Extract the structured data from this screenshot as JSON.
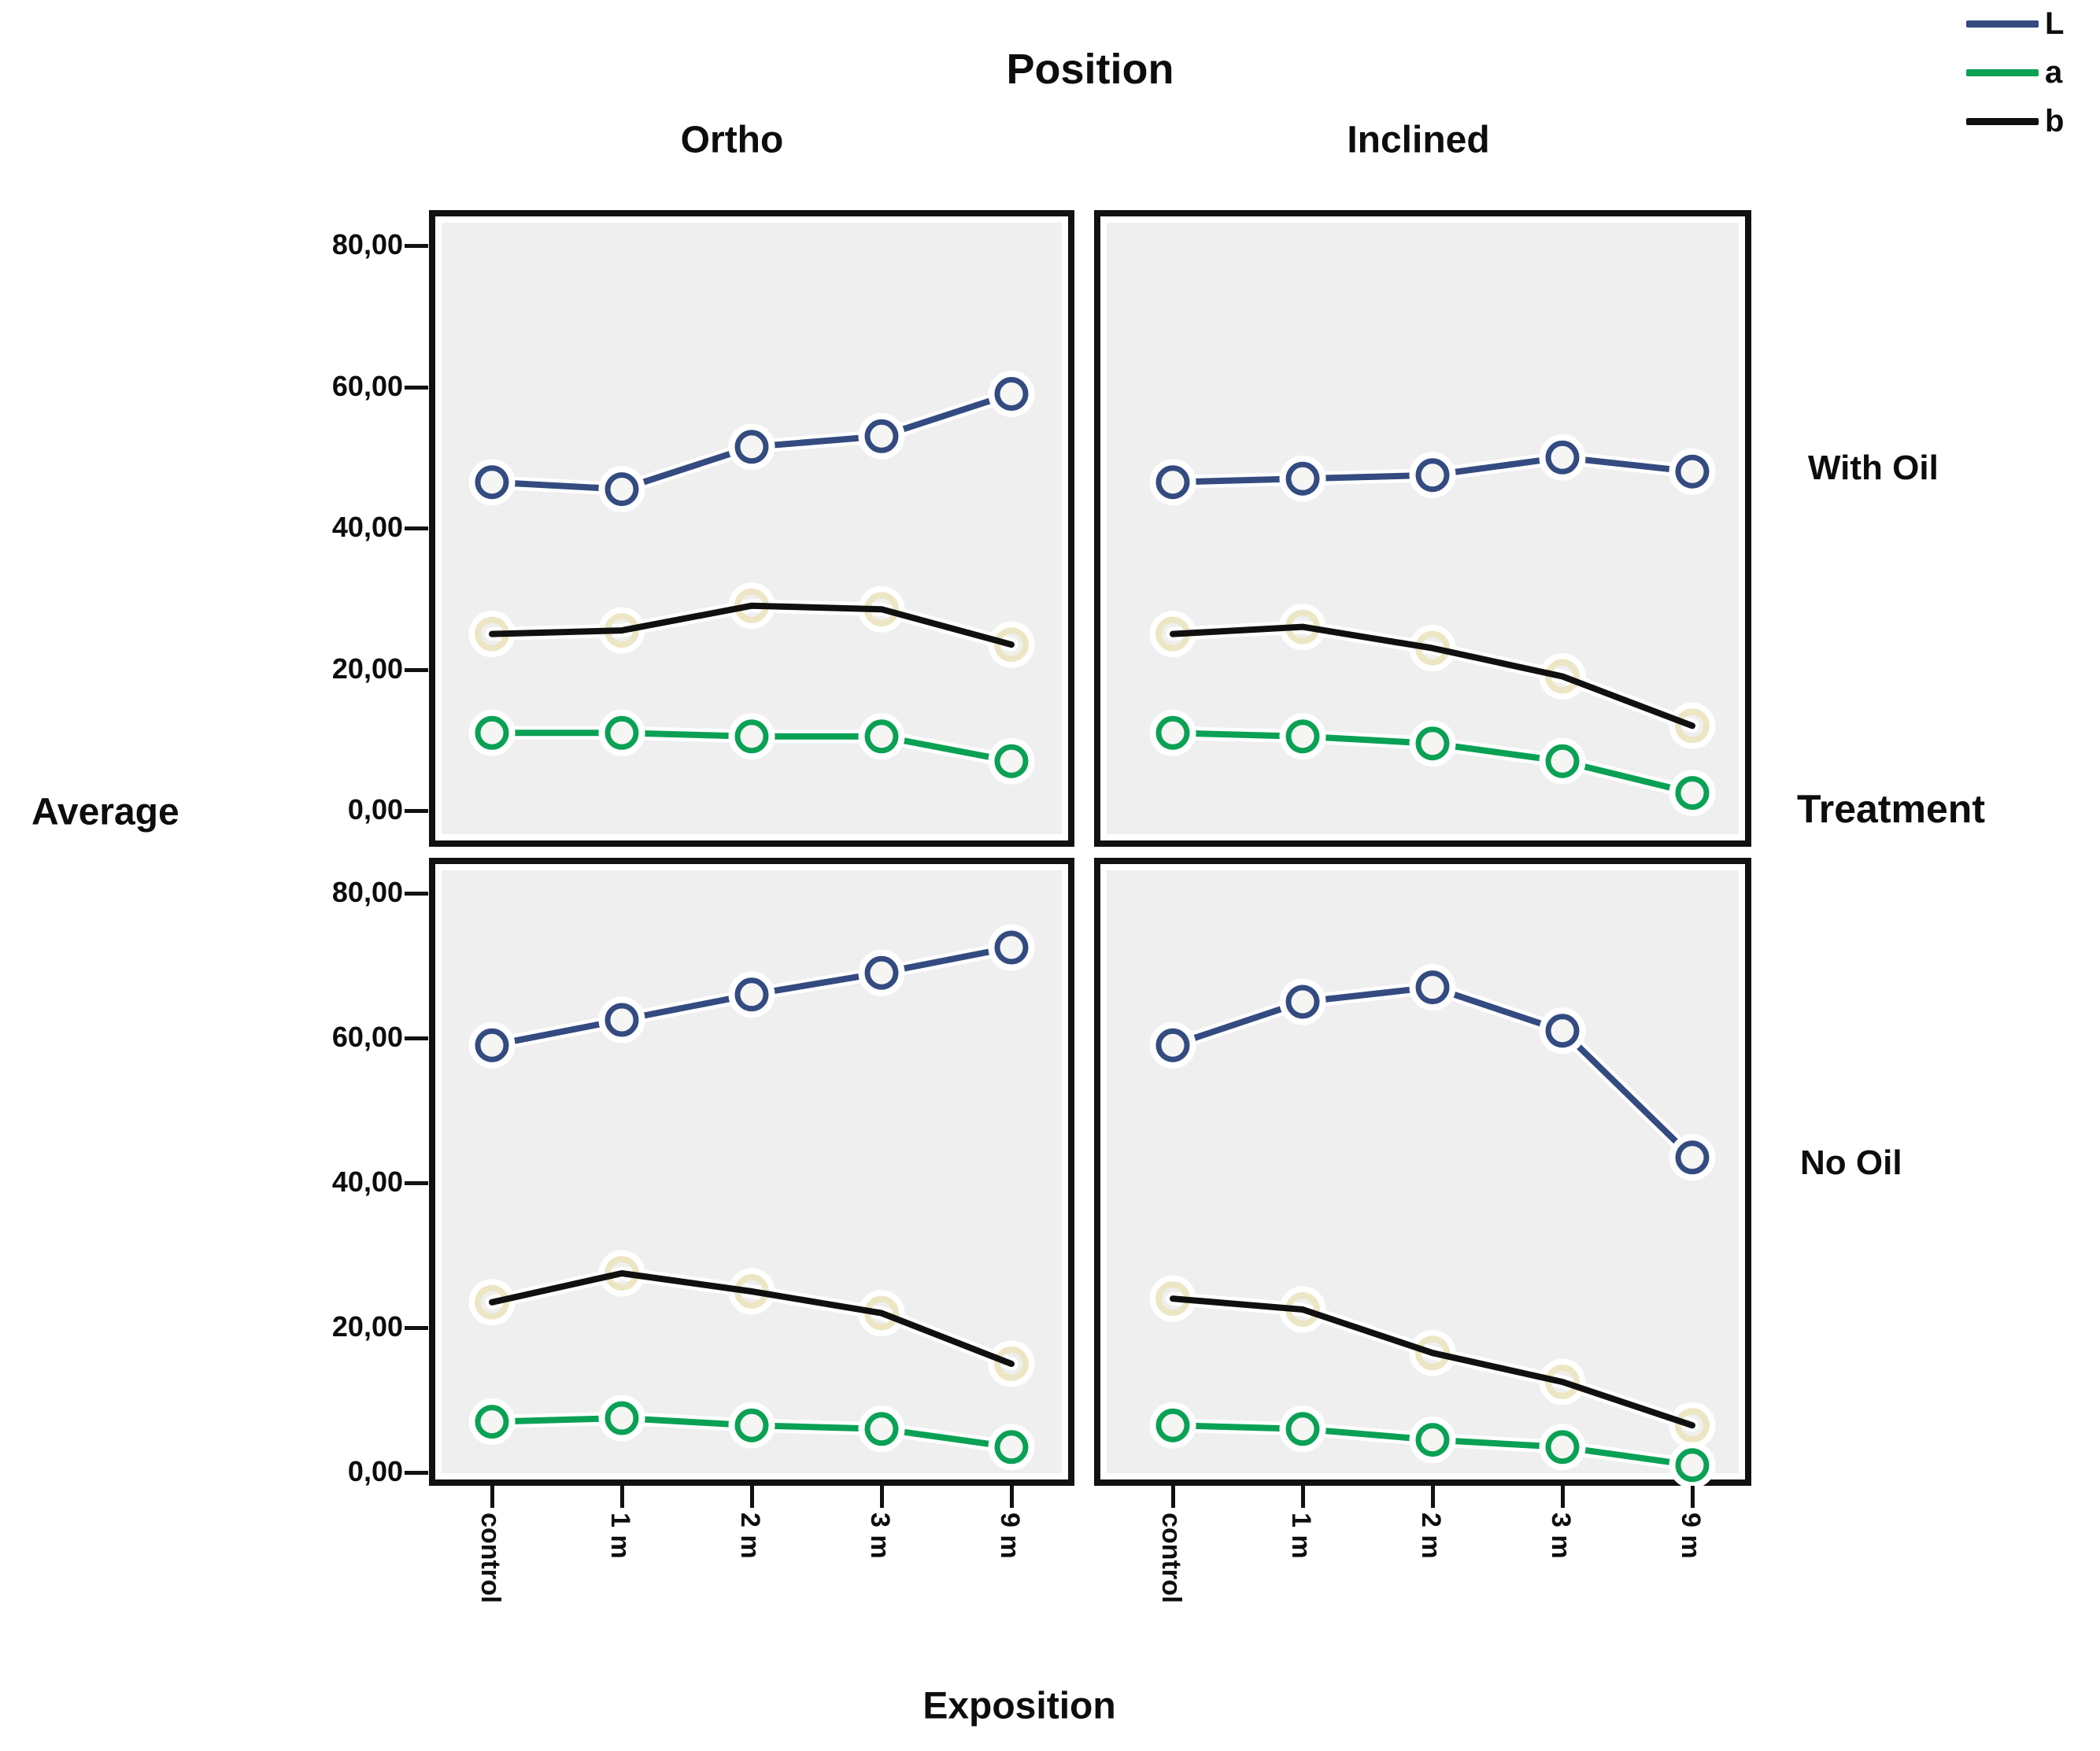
{
  "labels": {
    "position_title": "Position",
    "ortho": "Ortho",
    "inclined": "Inclined",
    "with_oil": "With Oil",
    "treatment": "Treatment",
    "no_oil": "No Oil",
    "average": "Average",
    "exposition": "Exposition"
  },
  "chart_data": {
    "type": "line",
    "title": "",
    "col_facet": {
      "title": "Position",
      "levels": [
        "Ortho",
        "Inclined"
      ]
    },
    "row_facet": {
      "title": "Treatment",
      "levels": [
        "With Oil",
        "No Oil"
      ]
    },
    "xlabel": "Exposition",
    "ylabel": "Average",
    "categories": [
      "control",
      "1 m",
      "2 m",
      "3 m",
      "9 m"
    ],
    "ylim": [
      0,
      80
    ],
    "grid": false,
    "panel_background": "#EFEFEF",
    "y_ticks": {
      "values": [
        80,
        60,
        40,
        20,
        0
      ],
      "labels": [
        "80,00",
        "60,00",
        "40,00",
        "20,00",
        "0,00"
      ]
    },
    "legend": {
      "position": "top-right",
      "entries": [
        {
          "name": "L",
          "color": "#334B80"
        },
        {
          "name": "a",
          "color": "#0AA155"
        },
        {
          "name": "b",
          "color": "#101010"
        }
      ]
    },
    "marker_halo_colors": {
      "L": "#FFFFFF",
      "a": "#FFFFFF",
      "b": "#EDE6C4"
    },
    "panels": [
      {
        "col": "Ortho",
        "row": "With Oil",
        "series": [
          {
            "name": "L",
            "values": [
              46.5,
              45.5,
              51.5,
              53,
              59
            ]
          },
          {
            "name": "b",
            "values": [
              25,
              25.5,
              29,
              28.5,
              23.5
            ]
          },
          {
            "name": "a",
            "values": [
              11,
              11,
              10.5,
              10.5,
              7
            ]
          }
        ]
      },
      {
        "col": "Inclined",
        "row": "With Oil",
        "series": [
          {
            "name": "L",
            "values": [
              46.5,
              47,
              47.5,
              50,
              48
            ]
          },
          {
            "name": "b",
            "values": [
              25,
              26,
              23,
              19,
              12
            ]
          },
          {
            "name": "a",
            "values": [
              11,
              10.5,
              9.5,
              7,
              2.5
            ]
          }
        ]
      },
      {
        "col": "Ortho",
        "row": "No Oil",
        "series": [
          {
            "name": "L",
            "values": [
              59,
              62.5,
              66,
              69,
              72.5
            ]
          },
          {
            "name": "b",
            "values": [
              23.5,
              27.5,
              25,
              22,
              15
            ]
          },
          {
            "name": "a",
            "values": [
              7,
              7.5,
              6.5,
              6,
              3.5
            ]
          }
        ]
      },
      {
        "col": "Inclined",
        "row": "No Oil",
        "series": [
          {
            "name": "L",
            "values": [
              59,
              65,
              67,
              61,
              43.5
            ]
          },
          {
            "name": "b",
            "values": [
              24,
              22.5,
              16.5,
              12.5,
              6.5
            ]
          },
          {
            "name": "a",
            "values": [
              6.5,
              6,
              4.5,
              3.5,
              1
            ]
          }
        ]
      }
    ]
  }
}
